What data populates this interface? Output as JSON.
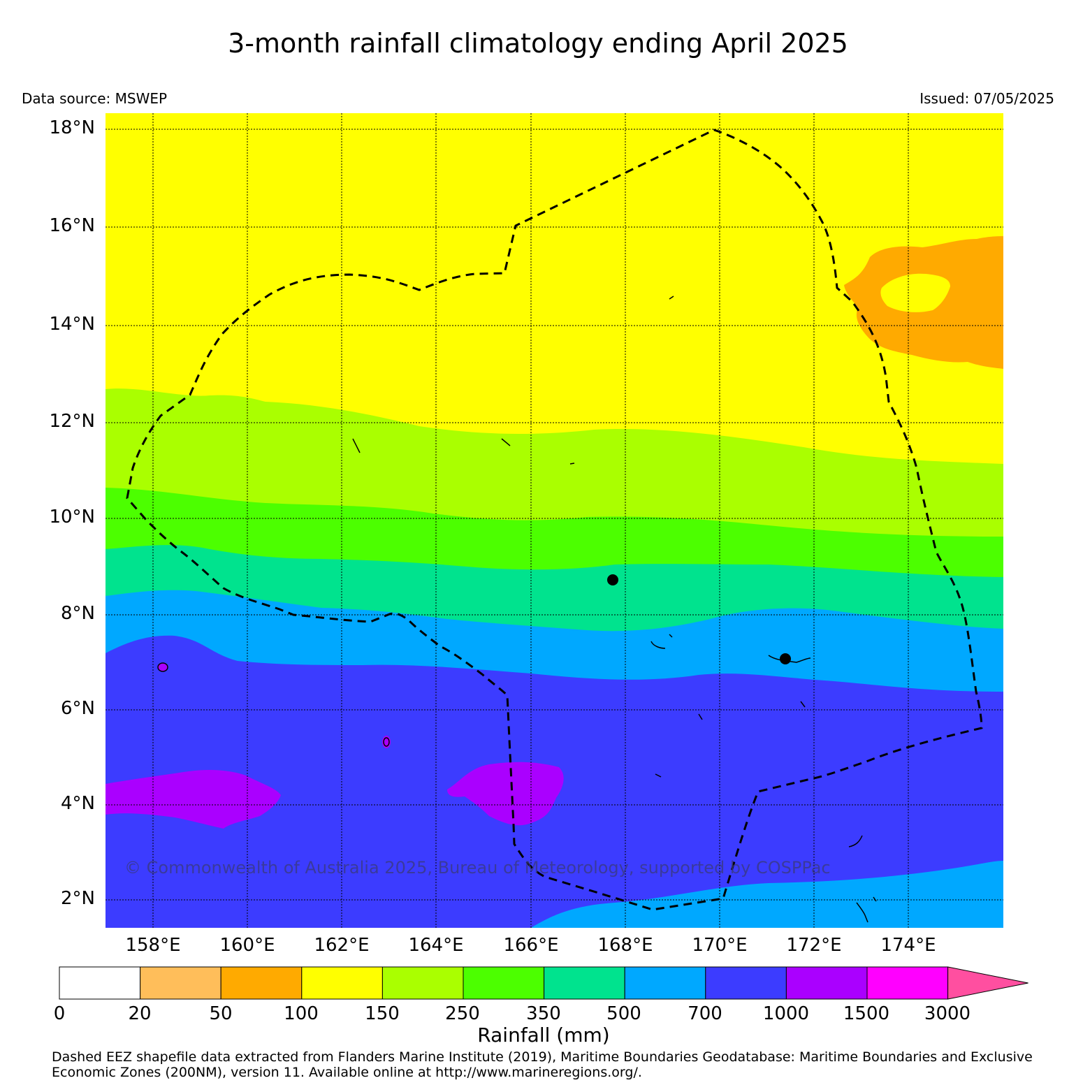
{
  "title": "3-month rainfall climatology ending April 2025",
  "data_source": "Data source: MSWEP",
  "issued": "Issued: 07/05/2025",
  "copyright": "© Commonwealth of Australia 2025, Bureau of Meteorology, supported by COSPPac",
  "lat_labels": [
    "18°N",
    "16°N",
    "14°N",
    "12°N",
    "10°N",
    "8°N",
    "6°N",
    "4°N",
    "2°N"
  ],
  "lon_labels": [
    "158°E",
    "160°E",
    "162°E",
    "164°E",
    "166°E",
    "168°E",
    "170°E",
    "172°E",
    "174°E"
  ],
  "colorbar": {
    "title": "Rainfall (mm)",
    "labels": [
      "0",
      "20",
      "50",
      "100",
      "150",
      "250",
      "350",
      "500",
      "700",
      "1000",
      "1500",
      "3000"
    ],
    "colors": [
      "#ffffff",
      "#ffbe5a",
      "#ffaa00",
      "#ffff00",
      "#aaff00",
      "#4cff00",
      "#00e38e",
      "#00a8ff",
      "#3c3cff",
      "#aa00ff",
      "#ff00ff",
      "#ff4fa0"
    ]
  },
  "footnote": "Dashed EEZ shapefile data extracted from Flanders Marine Institute (2019), Maritime Boundaries Geodatabase: Maritime Boundaries and Exclusive Economic Zones (200NM), version 11. Available online at http://www.marineregions.org/."
}
